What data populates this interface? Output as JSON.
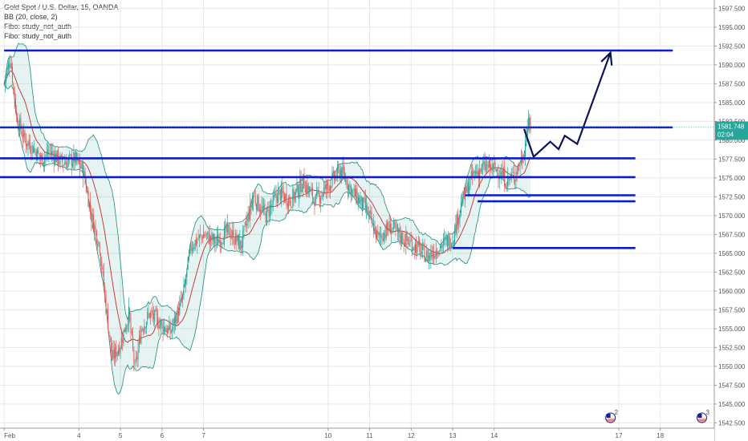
{
  "legend": {
    "title": "Gold Spot / U.S. Dollar, 15, OANDA",
    "bb": "BB (20, close, 2)",
    "fibo1": "Fibo: study_not_auth",
    "fibo2": "Fibo: study_not_auth"
  },
  "price_tag": {
    "price": "1581.748",
    "countdown": "02:04",
    "color": "#26a69a"
  },
  "event_icons": [
    {
      "x": 16.8,
      "label": "2",
      "icon": "us-flag-icon"
    },
    {
      "x": 19.0,
      "label": "3",
      "icon": "us-flag-icon"
    }
  ],
  "colors": {
    "up": "#26a69a",
    "down": "#ef5350",
    "basis": "#c62828",
    "band": "#1b8a7a",
    "band_fill": "rgba(38,166,154,0.12)",
    "level_line": "#0e1bc9",
    "arrow": "#0d1550",
    "grid": "#e8e8e8"
  },
  "chart_data": {
    "type": "candlestick",
    "title": "Gold Spot / U.S. Dollar, 15, OANDA",
    "yaxis": {
      "ylim": [
        1541.8,
        1598.6
      ],
      "ticks": [
        "1597.500",
        "1595.000",
        "1592.500",
        "1590.000",
        "1587.500",
        "1585.000",
        "1582.500",
        "1580.000",
        "1577.500",
        "1575.000",
        "1572.500",
        "1570.000",
        "1567.500",
        "1565.000",
        "1562.500",
        "1560.000",
        "1557.500",
        "1555.000",
        "1552.500",
        "1550.000",
        "1547.500",
        "1545.000",
        "1542.500"
      ]
    },
    "xaxis": {
      "xlim": [
        2.1,
        19.3
      ],
      "ticks": [
        {
          "x": 2.2,
          "label": "Feb"
        },
        {
          "x": 4.0,
          "label": "4"
        },
        {
          "x": 5.0,
          "label": "5"
        },
        {
          "x": 6.0,
          "label": "6"
        },
        {
          "x": 7.0,
          "label": "7"
        },
        {
          "x": 10.0,
          "label": "10"
        },
        {
          "x": 11.0,
          "label": "11"
        },
        {
          "x": 12.0,
          "label": "12"
        },
        {
          "x": 13.0,
          "label": "13"
        },
        {
          "x": 14.0,
          "label": "14"
        },
        {
          "x": 17.0,
          "label": "17"
        },
        {
          "x": 18.0,
          "label": "18"
        }
      ]
    },
    "price_path": [
      [
        2.2,
        1587.5
      ],
      [
        2.35,
        1591.0
      ],
      [
        2.5,
        1583.0
      ],
      [
        2.7,
        1580.0
      ],
      [
        2.9,
        1579.0
      ],
      [
        3.1,
        1577.5
      ],
      [
        3.3,
        1578.5
      ],
      [
        3.6,
        1577.0
      ],
      [
        3.9,
        1577.5
      ],
      [
        4.1,
        1576.0
      ],
      [
        4.3,
        1570.0
      ],
      [
        4.5,
        1566.0
      ],
      [
        4.65,
        1558.0
      ],
      [
        4.8,
        1551.0
      ],
      [
        5.0,
        1553.0
      ],
      [
        5.2,
        1557.0
      ],
      [
        5.35,
        1549.5
      ],
      [
        5.5,
        1555.0
      ],
      [
        5.7,
        1557.0
      ],
      [
        5.9,
        1556.0
      ],
      [
        6.2,
        1554.5
      ],
      [
        6.5,
        1559.0
      ],
      [
        6.7,
        1566.0
      ],
      [
        7.0,
        1567.5
      ],
      [
        7.3,
        1566.5
      ],
      [
        7.6,
        1568.0
      ],
      [
        7.9,
        1566.0
      ],
      [
        8.2,
        1572.5
      ],
      [
        8.5,
        1570.0
      ],
      [
        8.8,
        1573.0
      ],
      [
        9.1,
        1572.0
      ],
      [
        9.4,
        1574.5
      ],
      [
        9.7,
        1572.0
      ],
      [
        10.0,
        1574.0
      ],
      [
        10.3,
        1576.0
      ],
      [
        10.6,
        1573.0
      ],
      [
        10.9,
        1571.0
      ],
      [
        11.2,
        1567.0
      ],
      [
        11.5,
        1568.5
      ],
      [
        11.8,
        1567.0
      ],
      [
        12.1,
        1566.0
      ],
      [
        12.4,
        1564.5
      ],
      [
        12.7,
        1566.0
      ],
      [
        13.0,
        1567.0
      ],
      [
        13.2,
        1571.5
      ],
      [
        13.5,
        1575.5
      ],
      [
        13.8,
        1576.5
      ],
      [
        14.1,
        1576.0
      ],
      [
        14.3,
        1574.5
      ],
      [
        14.5,
        1575.5
      ],
      [
        14.7,
        1578.0
      ],
      [
        14.8,
        1582.0
      ],
      [
        14.9,
        1581.7
      ]
    ],
    "horizontal_levels": [
      {
        "from_x": 2.2,
        "to_x": 18.3,
        "y": 1591.9
      },
      {
        "from_x": 2.1,
        "to_x": 18.3,
        "y": 1581.7
      },
      {
        "from_x": 2.1,
        "to_x": 17.4,
        "y": 1577.6
      },
      {
        "from_x": 2.1,
        "to_x": 17.4,
        "y": 1575.1
      },
      {
        "from_x": 13.3,
        "to_x": 17.4,
        "y": 1572.7
      },
      {
        "from_x": 13.6,
        "to_x": 17.4,
        "y": 1571.9
      },
      {
        "from_x": 13.0,
        "to_x": 17.4,
        "y": 1565.7
      }
    ],
    "projection_arrow": [
      [
        14.72,
        1581.5
      ],
      [
        14.95,
        1577.8
      ],
      [
        15.35,
        1579.8
      ],
      [
        15.55,
        1578.8
      ],
      [
        15.7,
        1580.6
      ],
      [
        16.0,
        1579.5
      ],
      [
        16.8,
        1591.6
      ]
    ],
    "last_price": 1581.748
  }
}
